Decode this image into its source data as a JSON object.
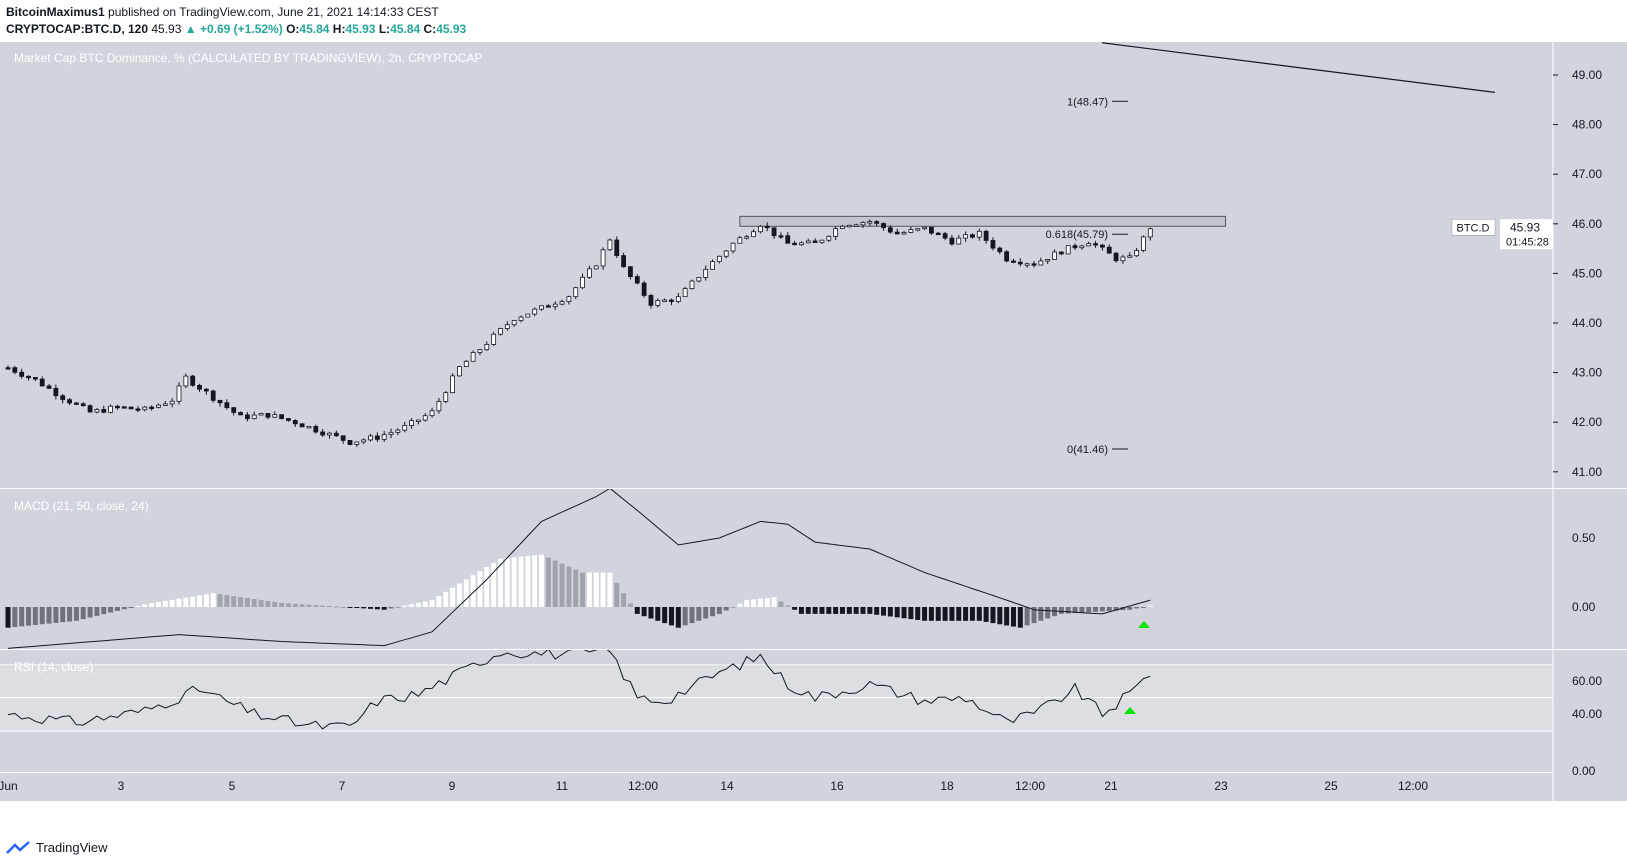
{
  "header": {
    "author": "BitcoinMaximus1",
    "published": "published on TradingView.com, June 21, 2021 14:14:33 CEST",
    "symbol": "CRYPTOCAP:BTC.D, 120",
    "last": "45.93",
    "change": "+0.69 (+1.52%)",
    "o_label": "O:",
    "o": "45.84",
    "h_label": "H:",
    "h": "45.93",
    "l_label": "L:",
    "l": "45.84",
    "c_label": "C:",
    "c": "45.93"
  },
  "footer": {
    "brand": "TradingView",
    "logo_icon": "tradingview-logo-icon"
  },
  "colors": {
    "pane_bg": "#d1d4dc",
    "rsi_band": "#dcdee4",
    "up_arrow": "#00e600",
    "text": "#131722"
  },
  "chart_data": [
    {
      "type": "candlestick",
      "title": "Market Cap BTC Dominance, % (CALCULATED BY TRADINGVIEW), 2h, CRYPTOCAP",
      "ylim": [
        40.8,
        49.6
      ],
      "y_ticks": [
        "49.00",
        "48.00",
        "47.00",
        "46.00",
        "45.00",
        "44.00",
        "43.00",
        "42.00",
        "41.00"
      ],
      "x_ticks": [
        "Jun",
        "3",
        "5",
        "7",
        "9",
        "11",
        "12:00",
        "14",
        "16",
        "18",
        "12:00",
        "21",
        "23",
        "25",
        "12:00"
      ],
      "close_path": [
        [
          0,
          43.1
        ],
        [
          4,
          42.85
        ],
        [
          8,
          42.5
        ],
        [
          12,
          42.2
        ],
        [
          16,
          42.3
        ],
        [
          20,
          42.25
        ],
        [
          24,
          42.45
        ],
        [
          26,
          42.9
        ],
        [
          30,
          42.5
        ],
        [
          34,
          42.1
        ],
        [
          38,
          42.15
        ],
        [
          42,
          42.0
        ],
        [
          46,
          41.8
        ],
        [
          50,
          41.6
        ],
        [
          54,
          41.7
        ],
        [
          58,
          41.9
        ],
        [
          62,
          42.2
        ],
        [
          66,
          43.1
        ],
        [
          70,
          43.6
        ],
        [
          74,
          44.1
        ],
        [
          78,
          44.3
        ],
        [
          82,
          44.55
        ],
        [
          86,
          45.2
        ],
        [
          88,
          45.7
        ],
        [
          90,
          45.1
        ],
        [
          94,
          44.4
        ],
        [
          98,
          44.5
        ],
        [
          102,
          45.1
        ],
        [
          106,
          45.6
        ],
        [
          110,
          46.0
        ],
        [
          114,
          45.6
        ],
        [
          118,
          45.6
        ],
        [
          122,
          46.0
        ],
        [
          126,
          46.05
        ],
        [
          130,
          45.8
        ],
        [
          134,
          45.9
        ],
        [
          138,
          45.65
        ],
        [
          142,
          45.8
        ],
        [
          146,
          45.3
        ],
        [
          150,
          45.2
        ],
        [
          154,
          45.45
        ],
        [
          158,
          45.65
        ],
        [
          162,
          45.3
        ],
        [
          164,
          45.3
        ],
        [
          166,
          45.7
        ],
        [
          167,
          45.93
        ]
      ],
      "horizontal_zone": [
        45.95,
        46.15
      ],
      "fib_levels": [
        {
          "label": "1(48.47)",
          "value": 48.47
        },
        {
          "label": "0.618(45.79)",
          "value": 45.79
        },
        {
          "label": "0(41.46)",
          "value": 41.46
        }
      ],
      "trendline": [
        [
          49.65,
          48.65
        ]
      ],
      "price_tag": {
        "symbol": "BTC.D",
        "value": "45.93",
        "countdown": "01:45:28"
      }
    },
    {
      "type": "macd",
      "title": "MACD (21, 50, close, 24)",
      "y_ticks": [
        "0.50",
        "0.00"
      ],
      "ylim": [
        -0.3,
        0.85
      ],
      "macd_path": [
        [
          0,
          -0.3
        ],
        [
          25,
          -0.2
        ],
        [
          40,
          -0.25
        ],
        [
          55,
          -0.28
        ],
        [
          62,
          -0.18
        ],
        [
          70,
          0.2
        ],
        [
          78,
          0.62
        ],
        [
          86,
          0.8
        ],
        [
          88,
          0.86
        ],
        [
          92,
          0.7
        ],
        [
          98,
          0.45
        ],
        [
          104,
          0.5
        ],
        [
          110,
          0.62
        ],
        [
          114,
          0.6
        ],
        [
          118,
          0.47
        ],
        [
          126,
          0.42
        ],
        [
          134,
          0.25
        ],
        [
          140,
          0.15
        ],
        [
          146,
          0.05
        ],
        [
          150,
          -0.02
        ],
        [
          160,
          -0.05
        ],
        [
          167,
          0.05
        ]
      ],
      "histogram": [
        [
          0,
          -0.15
        ],
        [
          10,
          -0.1
        ],
        [
          20,
          0.02
        ],
        [
          30,
          0.1
        ],
        [
          40,
          0.03
        ],
        [
          55,
          -0.02
        ],
        [
          62,
          0.05
        ],
        [
          72,
          0.35
        ],
        [
          78,
          0.38
        ],
        [
          84,
          0.25
        ],
        [
          88,
          0.25
        ],
        [
          92,
          -0.05
        ],
        [
          98,
          -0.15
        ],
        [
          104,
          -0.05
        ],
        [
          108,
          0.05
        ],
        [
          112,
          0.07
        ],
        [
          116,
          -0.05
        ],
        [
          126,
          -0.05
        ],
        [
          134,
          -0.1
        ],
        [
          142,
          -0.1
        ],
        [
          148,
          -0.15
        ],
        [
          154,
          -0.05
        ],
        [
          164,
          -0.02
        ],
        [
          167,
          0.01
        ]
      ],
      "signal_arrow": "up"
    },
    {
      "type": "rsi",
      "title": "RSI (14, close)",
      "y_ticks": [
        "60.00",
        "40.00",
        "0.00"
      ],
      "ylim": [
        0,
        80
      ],
      "bands": [
        30,
        50,
        70
      ],
      "rsi_path": [
        [
          0,
          40
        ],
        [
          10,
          35
        ],
        [
          20,
          42
        ],
        [
          28,
          55
        ],
        [
          36,
          40
        ],
        [
          44,
          33
        ],
        [
          50,
          32
        ],
        [
          54,
          48
        ],
        [
          60,
          52
        ],
        [
          66,
          65
        ],
        [
          72,
          78
        ],
        [
          82,
          76
        ],
        [
          88,
          78
        ],
        [
          92,
          50
        ],
        [
          96,
          48
        ],
        [
          104,
          65
        ],
        [
          110,
          75
        ],
        [
          114,
          58
        ],
        [
          118,
          50
        ],
        [
          126,
          58
        ],
        [
          134,
          48
        ],
        [
          140,
          50
        ],
        [
          146,
          35
        ],
        [
          150,
          40
        ],
        [
          156,
          55
        ],
        [
          160,
          40
        ],
        [
          164,
          52
        ],
        [
          167,
          65
        ]
      ],
      "signal_arrow": "up"
    }
  ]
}
